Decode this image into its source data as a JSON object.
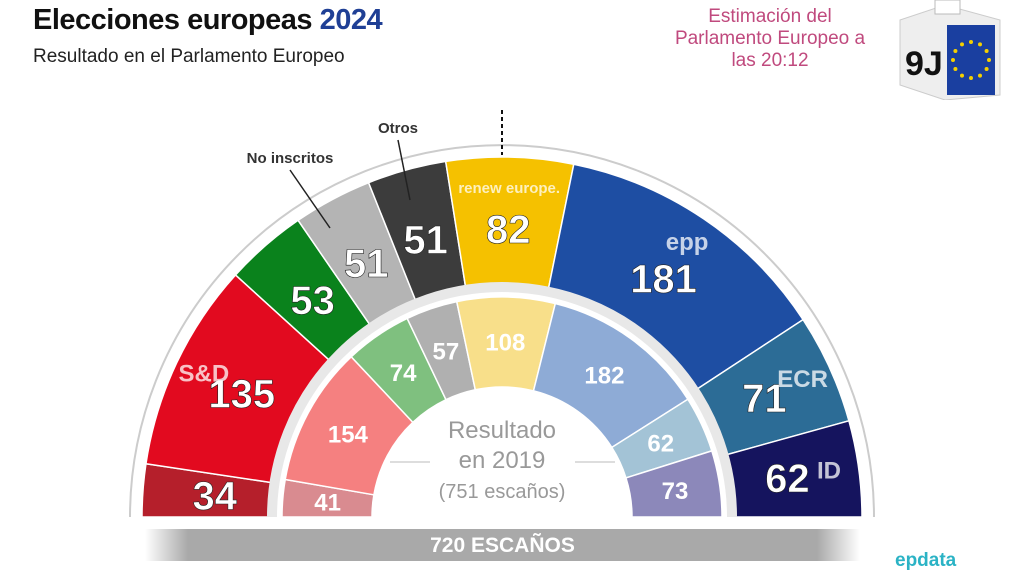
{
  "header": {
    "title": "Elecciones europeas",
    "year": "2024",
    "subtitle": "Resultado en el Parlamento Europeo"
  },
  "estimate": "Estimación del Parlamento Europeo a las 20:12",
  "badge": {
    "text": "9J"
  },
  "chart_data": {
    "type": "parliament",
    "title": "Elecciones europeas 2024",
    "current": {
      "total_label": "720 ESCAÑOS",
      "parties": [
        {
          "name": "",
          "seats": 34,
          "color": "#b51f2b",
          "logo": "left-icon"
        },
        {
          "name": "S&D",
          "seats": 135,
          "color": "#e20a1f"
        },
        {
          "name": "",
          "seats": 53,
          "color": "#0a821c",
          "logo": "greens-icon"
        },
        {
          "name": "No inscritos",
          "seats": 51,
          "color": "#b4b4b4"
        },
        {
          "name": "Otros",
          "seats": 51,
          "color": "#3c3c3c"
        },
        {
          "name": "renew europe.",
          "seats": 82,
          "color": "#f5c100"
        },
        {
          "name": "epp",
          "seats": 181,
          "color": "#1e4ea3"
        },
        {
          "name": "ECR",
          "seats": 71,
          "color": "#2c6c96"
        },
        {
          "name": "ID",
          "seats": 62,
          "color": "#15145e"
        }
      ]
    },
    "previous": {
      "label": "Resultado",
      "year_label": "en 2019",
      "total_label": "(751 escaños)",
      "parties": [
        {
          "seats": 41,
          "color": "#d98b90"
        },
        {
          "seats": 154,
          "color": "#f58080"
        },
        {
          "seats": 74,
          "color": "#7fc07f"
        },
        {
          "seats": 57,
          "color": "#b0b0b0"
        },
        {
          "seats": 108,
          "color": "#f8df8a"
        },
        {
          "seats": 182,
          "color": "#8eabd6"
        },
        {
          "seats": 62,
          "color": "#a3c3d6"
        },
        {
          "seats": 73,
          "color": "#8c88ba"
        }
      ]
    }
  },
  "footer": {
    "brand": "epdata"
  }
}
